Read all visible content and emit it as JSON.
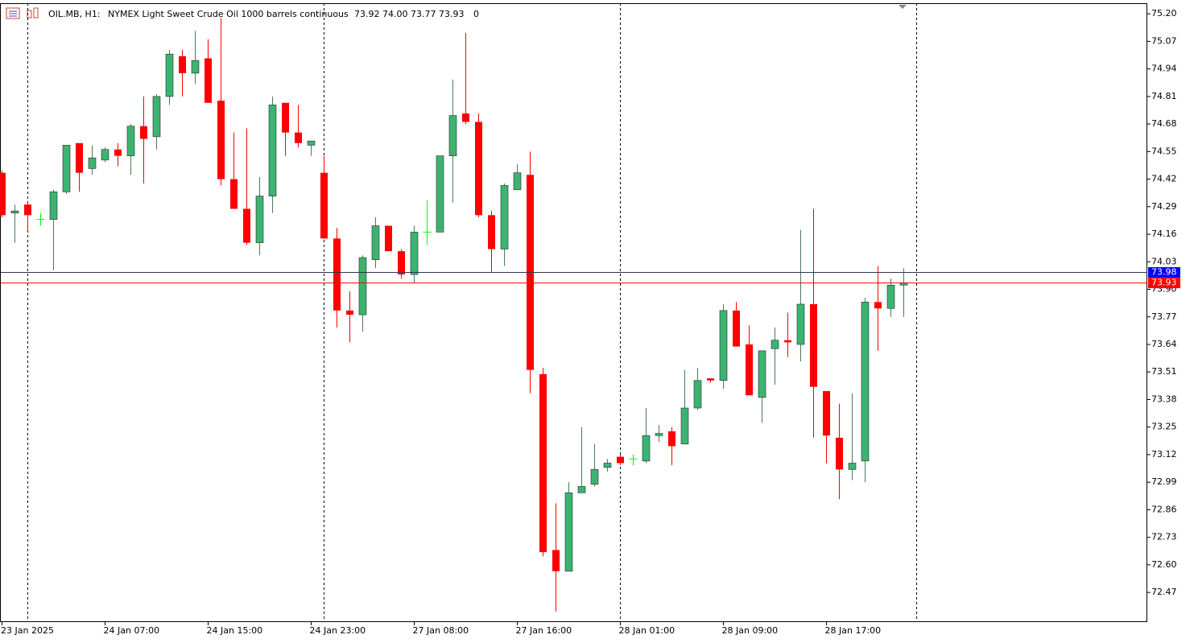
{
  "chart_data": {
    "type": "candlestick",
    "title": "OIL.MB, H1:",
    "subtitle": "NYMEX Light Sweet Crude Oil 1000 barrels continuous",
    "header_quote": "73.92 74.00 73.77 73.93",
    "volume": 0,
    "categories": [
      "23 Jan 2025",
      null,
      null,
      null,
      null,
      null,
      null,
      null,
      "24 Jan 07:00",
      null,
      null,
      null,
      null,
      null,
      null,
      null,
      "24 Jan 15:00",
      null,
      null,
      null,
      null,
      null,
      null,
      null,
      "24 Jan 23:00",
      null,
      null,
      null,
      null,
      null,
      null,
      null,
      "27 Jan 08:00",
      null,
      null,
      null,
      null,
      null,
      null,
      null,
      "27 Jan 16:00",
      null,
      null,
      null,
      null,
      null,
      null,
      null,
      "28 Jan 01:00",
      null,
      null,
      null,
      null,
      null,
      null,
      null,
      "28 Jan 09:00",
      null,
      null,
      null,
      null,
      null,
      null,
      null,
      "28 Jan 17:00",
      null,
      null,
      null,
      null,
      null,
      null
    ],
    "open": [
      74.45,
      74.26,
      74.3,
      74.23,
      74.23,
      74.36,
      74.59,
      74.47,
      74.51,
      74.56,
      74.53,
      74.67,
      74.62,
      74.81,
      75.0,
      74.92,
      74.99,
      74.79,
      74.42,
      74.28,
      74.12,
      74.34,
      74.78,
      74.64,
      74.58,
      74.45,
      74.14,
      73.8,
      73.78,
      74.04,
      74.2,
      74.08,
      73.97,
      74.17,
      74.17,
      74.53,
      74.73,
      74.69,
      74.25,
      74.09,
      74.37,
      74.44,
      73.5,
      72.67,
      72.57,
      72.94,
      72.98,
      73.06,
      73.11,
      73.1,
      73.09,
      73.21,
      73.23,
      73.17,
      73.34,
      73.48,
      73.47,
      73.8,
      73.64,
      73.39,
      73.62,
      73.66,
      73.64,
      73.83,
      73.42,
      73.2,
      73.05,
      73.09,
      73.84,
      73.81,
      73.92
    ],
    "high": [
      74.46,
      74.3,
      74.31,
      74.26,
      74.37,
      74.58,
      74.59,
      74.58,
      74.57,
      74.59,
      74.68,
      74.81,
      74.82,
      75.03,
      75.03,
      75.12,
      75.08,
      75.18,
      74.64,
      74.66,
      74.43,
      74.81,
      74.78,
      74.77,
      74.6,
      74.53,
      74.19,
      73.89,
      74.06,
      74.24,
      74.2,
      74.09,
      74.2,
      74.32,
      74.53,
      74.89,
      75.11,
      74.73,
      74.27,
      74.4,
      74.49,
      74.55,
      73.53,
      72.89,
      72.99,
      73.25,
      73.17,
      73.1,
      73.12,
      73.12,
      73.34,
      73.26,
      73.25,
      73.52,
      73.53,
      73.48,
      73.83,
      73.84,
      73.73,
      73.61,
      73.72,
      73.79,
      74.18,
      74.28,
      73.42,
      73.36,
      73.41,
      73.86,
      74.01,
      73.95,
      74.0
    ],
    "low": [
      74.24,
      74.12,
      74.18,
      74.2,
      73.99,
      74.35,
      74.36,
      74.44,
      74.5,
      74.48,
      74.44,
      74.4,
      74.56,
      74.77,
      74.81,
      74.87,
      74.78,
      74.39,
      74.28,
      74.11,
      74.06,
      74.26,
      74.53,
      74.57,
      74.53,
      74.14,
      73.72,
      73.65,
      73.7,
      74.0,
      74.08,
      73.95,
      73.93,
      74.11,
      74.17,
      74.31,
      74.68,
      74.24,
      73.98,
      74.01,
      74.37,
      73.41,
      72.64,
      72.38,
      72.57,
      72.94,
      72.97,
      73.04,
      73.07,
      73.07,
      73.08,
      73.18,
      73.07,
      73.17,
      73.33,
      73.46,
      73.43,
      73.63,
      73.4,
      73.27,
      73.45,
      73.58,
      73.56,
      73.2,
      73.08,
      72.91,
      73.0,
      72.99,
      73.61,
      73.77,
      73.77
    ],
    "close": [
      74.25,
      74.27,
      74.25,
      74.23,
      74.36,
      74.58,
      74.45,
      74.52,
      74.56,
      74.53,
      74.67,
      74.61,
      74.81,
      75.01,
      74.92,
      74.98,
      74.78,
      74.42,
      74.28,
      74.12,
      74.34,
      74.77,
      74.64,
      74.59,
      74.6,
      74.14,
      73.8,
      73.78,
      74.05,
      74.2,
      74.08,
      73.97,
      74.17,
      74.17,
      74.53,
      74.72,
      74.69,
      74.25,
      74.09,
      74.39,
      74.45,
      73.52,
      72.66,
      72.57,
      72.94,
      72.97,
      73.05,
      73.08,
      73.08,
      73.1,
      73.21,
      73.22,
      73.16,
      73.34,
      73.47,
      73.47,
      73.8,
      73.63,
      73.4,
      73.61,
      73.66,
      73.65,
      73.83,
      73.44,
      73.21,
      73.05,
      73.08,
      73.84,
      73.81,
      73.92,
      73.93
    ],
    "up_color": "#3cb371",
    "down_color": "#ff0000",
    "doji_color": "#00ff00",
    "price_lines": [
      {
        "value": 73.98,
        "color": "#0000ff",
        "line_color": "#33334d"
      },
      {
        "value": 73.93,
        "color": "#ff0000",
        "line_color": "#ff0000"
      }
    ],
    "ylim": [
      72.33,
      75.25
    ],
    "yticks": [
      {
        "value": 75.2,
        "label": "75.20"
      },
      75.07,
      74.94,
      74.81,
      74.68,
      74.55,
      74.42,
      74.29,
      74.16,
      74.03,
      {
        "value": 73.9,
        "label": "73.90"
      },
      73.77,
      73.64,
      73.51,
      73.38,
      73.25,
      73.12,
      72.99,
      72.86,
      72.73,
      {
        "value": 72.6,
        "label": "72.60"
      },
      72.47
    ]
  }
}
